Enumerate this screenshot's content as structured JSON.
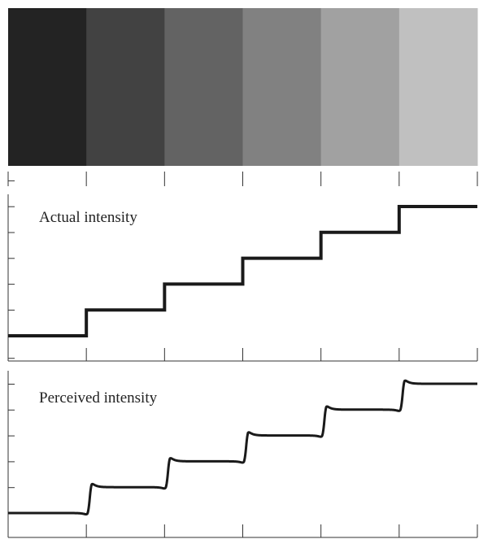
{
  "bands": {
    "colors": [
      "#232323",
      "#424242",
      "#636363",
      "#818181",
      "#a1a1a1",
      "#c0c0c0"
    ]
  },
  "plots": {
    "actual": {
      "label": "Actual intensity",
      "levels": [
        0,
        1,
        2,
        3,
        4,
        5
      ]
    },
    "perceived": {
      "label": "Perceived intensity",
      "levels": [
        0,
        1,
        2,
        3,
        4,
        5
      ],
      "overshoot": 0.35,
      "undershoot": 0.2
    }
  },
  "axis": {
    "segments": 6,
    "y_ticks": 6
  },
  "colors": {
    "line": "#1a1a1a",
    "axis": "#333333"
  }
}
